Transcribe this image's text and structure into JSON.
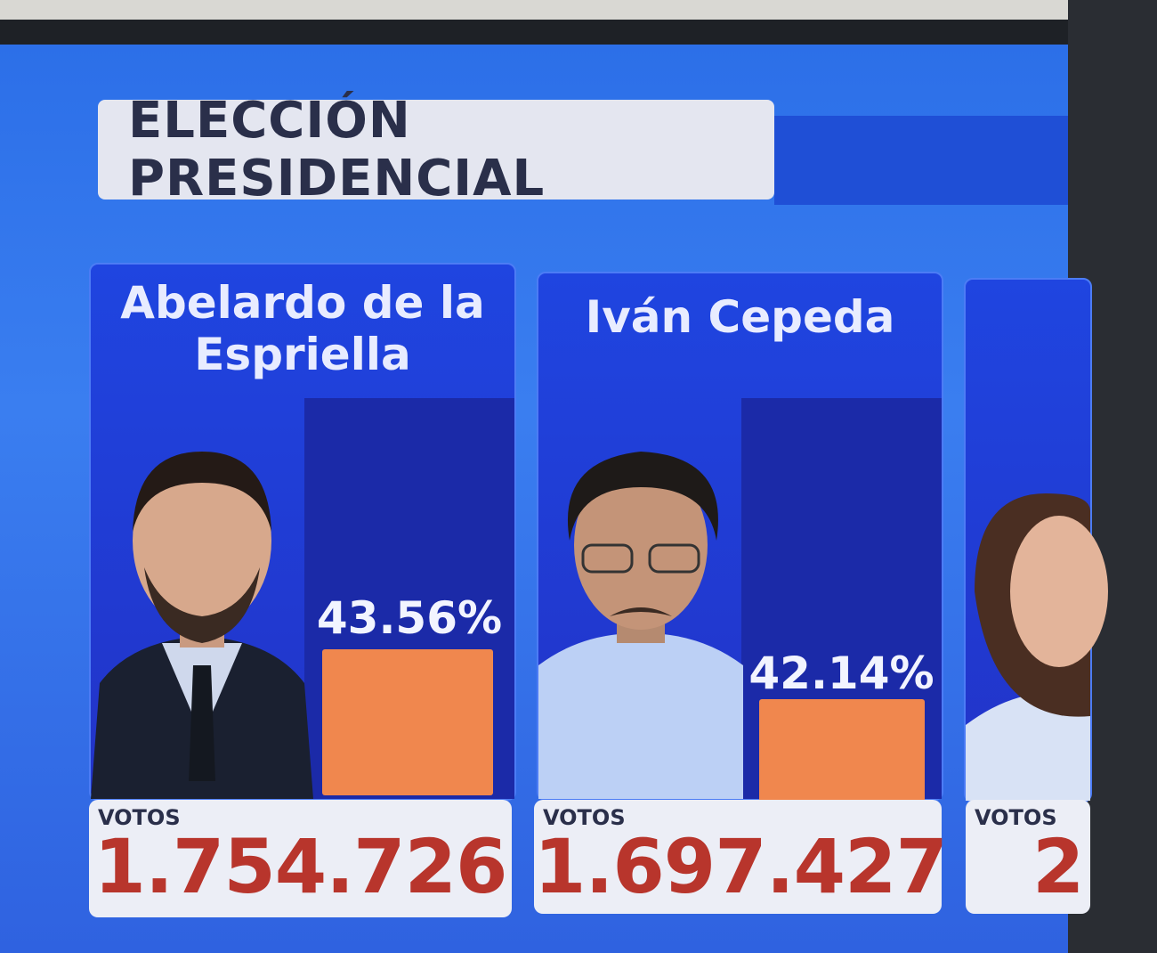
{
  "header": {
    "title": "ELECCIÓN PRESIDENCIAL"
  },
  "candidates": [
    {
      "name": "Abelardo de la Espriella",
      "percent": "43.56%",
      "votes_label": "VOTOS",
      "votes": "1.754.726"
    },
    {
      "name": "Iván Cepeda",
      "percent": "42.14%",
      "votes_label": "VOTOS",
      "votes": "1.697.427"
    },
    {
      "votes_label": "VOTOS",
      "votes": "2"
    }
  ]
}
